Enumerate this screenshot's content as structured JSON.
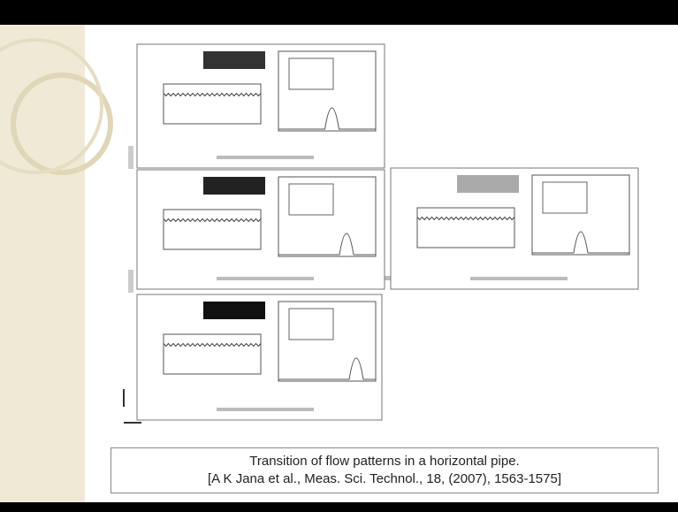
{
  "caption": {
    "line1": "Transition of flow patterns in a horizontal pipe.",
    "line2": "[A K Jana et al., Meas. Sci. Technol., 18, (2007), 1563-1575]"
  }
}
